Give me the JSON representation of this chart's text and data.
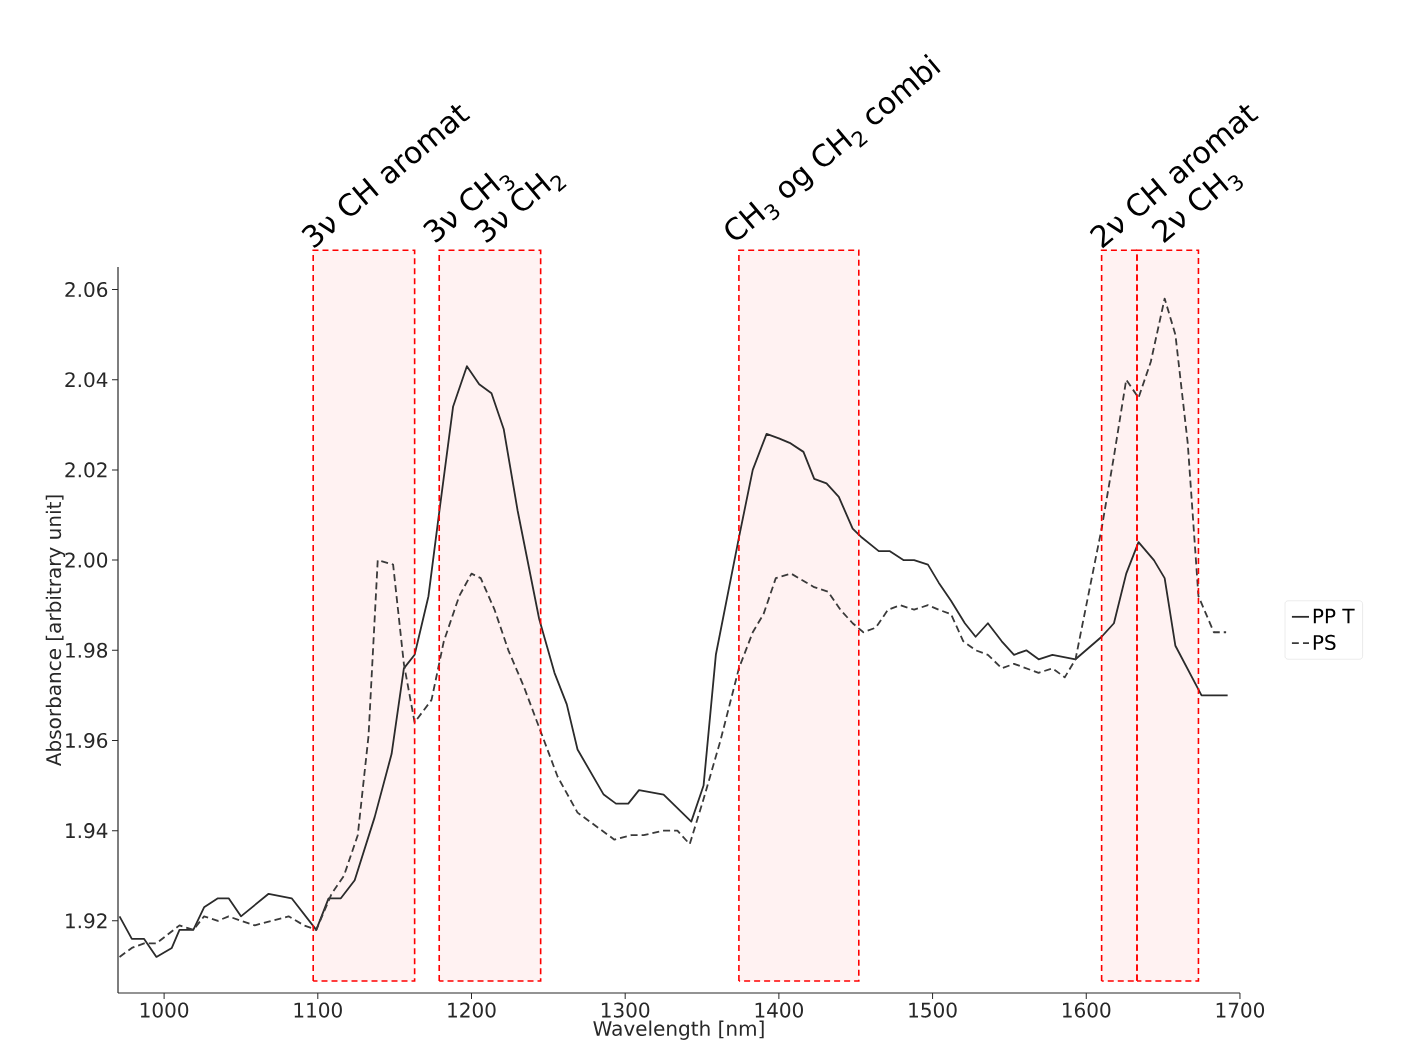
{
  "chart_data": {
    "type": "line",
    "xlabel": "Wavelength [nm]",
    "ylabel": "Absorbance [arbitrary unit]",
    "xlim": [
      970,
      1700
    ],
    "ylim": [
      1.904,
      2.065
    ],
    "xticks": [
      1000,
      1100,
      1200,
      1300,
      1400,
      1500,
      1600,
      1700
    ],
    "yticks": [
      {
        "value": 1.92,
        "label": "1.92"
      },
      {
        "value": 1.94,
        "label": "1.94"
      },
      {
        "value": 1.96,
        "label": "1.96"
      },
      {
        "value": 1.98,
        "label": "1.98"
      },
      {
        "value": 2.0,
        "label": "2.00"
      },
      {
        "value": 2.02,
        "label": "2.02"
      },
      {
        "value": 2.04,
        "label": "2.04"
      },
      {
        "value": 2.06,
        "label": "2.06"
      }
    ],
    "legend": "right",
    "series": [
      {
        "name": "PP T",
        "color": "#2b2b2b",
        "line_style": "solid",
        "x": [
          971,
          979,
          987,
          995,
          1005,
          1010,
          1019,
          1026,
          1035,
          1042,
          1050,
          1068,
          1083,
          1099,
          1107,
          1115,
          1124,
          1137,
          1148,
          1156,
          1163,
          1172,
          1178,
          1188,
          1197,
          1205,
          1213,
          1221,
          1230,
          1244,
          1254,
          1262,
          1269,
          1286,
          1294,
          1302,
          1309,
          1325,
          1334,
          1343,
          1351,
          1359,
          1374,
          1383,
          1392,
          1400,
          1407,
          1416,
          1423,
          1431,
          1439,
          1448,
          1454,
          1465,
          1472,
          1481,
          1488,
          1497,
          1504,
          1512,
          1521,
          1528,
          1536,
          1545,
          1553,
          1561,
          1569,
          1578,
          1593,
          1610,
          1618,
          1626,
          1634,
          1644,
          1651,
          1658,
          1675,
          1692
        ],
        "values": [
          1.921,
          1.916,
          1.916,
          1.912,
          1.914,
          1.918,
          1.918,
          1.923,
          1.925,
          1.925,
          1.921,
          1.926,
          1.925,
          1.918,
          1.925,
          1.925,
          1.929,
          1.943,
          1.957,
          1.976,
          1.979,
          1.992,
          2.008,
          2.034,
          2.043,
          2.039,
          2.037,
          2.029,
          2.011,
          1.987,
          1.975,
          1.968,
          1.958,
          1.948,
          1.946,
          1.946,
          1.949,
          1.948,
          1.945,
          1.942,
          1.95,
          1.979,
          2.005,
          2.02,
          2.028,
          2.027,
          2.026,
          2.024,
          2.018,
          2.017,
          2.014,
          2.007,
          2.005,
          2.002,
          2.002,
          2.0,
          2.0,
          1.999,
          1.995,
          1.991,
          1.986,
          1.983,
          1.986,
          1.982,
          1.979,
          1.98,
          1.978,
          1.979,
          1.978,
          1.983,
          1.986,
          1.997,
          2.004,
          2.0,
          1.996,
          1.981,
          1.97,
          1.97
        ]
      },
      {
        "name": "PS",
        "color": "#3a3a3a",
        "line_style": "dashed",
        "x": [
          971,
          979,
          987,
          995,
          1010,
          1019,
          1026,
          1035,
          1042,
          1050,
          1059,
          1070,
          1081,
          1091,
          1099,
          1109,
          1117,
          1126,
          1133,
          1139,
          1149,
          1156,
          1163,
          1174,
          1182,
          1192,
          1200,
          1206,
          1215,
          1224,
          1234,
          1245,
          1256,
          1269,
          1293,
          1304,
          1312,
          1325,
          1334,
          1342,
          1351,
          1362,
          1374,
          1383,
          1390,
          1398,
          1408,
          1423,
          1432,
          1440,
          1448,
          1455,
          1463,
          1471,
          1479,
          1488,
          1497,
          1504,
          1512,
          1520,
          1528,
          1536,
          1545,
          1553,
          1561,
          1569,
          1578,
          1586,
          1593,
          1610,
          1618,
          1626,
          1634,
          1642,
          1651,
          1658,
          1666,
          1673,
          1683,
          1691
        ],
        "values": [
          1.912,
          1.914,
          1.915,
          1.915,
          1.919,
          1.918,
          1.921,
          1.92,
          1.921,
          1.92,
          1.919,
          1.92,
          1.921,
          1.919,
          1.918,
          1.926,
          1.93,
          1.939,
          1.961,
          2.0,
          1.999,
          1.977,
          1.964,
          1.969,
          1.982,
          1.992,
          1.997,
          1.996,
          1.989,
          1.98,
          1.972,
          1.962,
          1.952,
          1.944,
          1.938,
          1.939,
          1.939,
          1.94,
          1.94,
          1.937,
          1.947,
          1.96,
          1.976,
          1.984,
          1.988,
          1.996,
          1.997,
          1.994,
          1.993,
          1.989,
          1.986,
          1.984,
          1.985,
          1.989,
          1.99,
          1.989,
          1.99,
          1.989,
          1.988,
          1.982,
          1.98,
          1.979,
          1.976,
          1.977,
          1.976,
          1.975,
          1.976,
          1.974,
          1.978,
          2.007,
          2.023,
          2.04,
          2.036,
          2.044,
          2.058,
          2.05,
          2.026,
          1.992,
          1.984,
          1.984
        ]
      }
    ],
    "bands": [
      {
        "axis": "x",
        "from": 1097,
        "to": 1163,
        "label": "3ν CH aromat"
      },
      {
        "axis": "x",
        "from": 1179,
        "to": 1245,
        "label": "3ν CH$_{3}$"
      },
      {
        "axis": "x",
        "from": 1374,
        "to": 1452,
        "label": "CH$_{3}$ og CH$_{2}$ combi"
      },
      {
        "axis": "x",
        "from": 1610,
        "to": 1633,
        "label": "2ν CH aromat"
      },
      {
        "axis": "x",
        "from": 1633,
        "to": 1673,
        "label": "2ν CH$_{3}$"
      }
    ],
    "annotations": [
      "3ν CH$_{2}$"
    ]
  }
}
